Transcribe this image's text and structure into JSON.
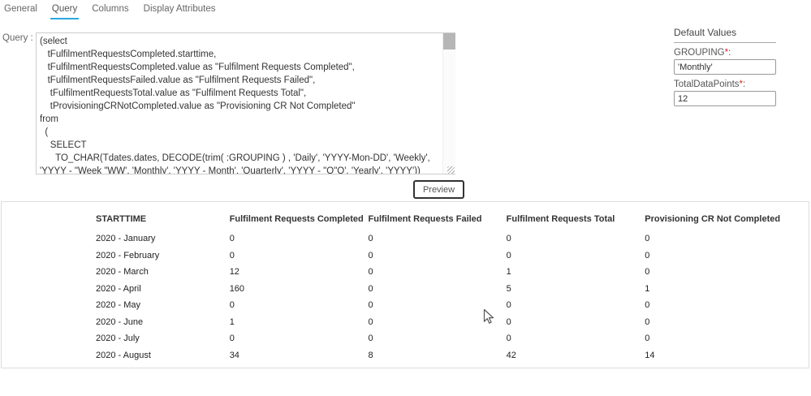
{
  "colors": {
    "accent": "#2aa9e0",
    "required": "#e02020"
  },
  "tabs": {
    "items": [
      {
        "label": "General",
        "active": false
      },
      {
        "label": "Query",
        "active": true
      },
      {
        "label": "Columns",
        "active": false
      },
      {
        "label": "Display Attributes",
        "active": false
      }
    ]
  },
  "query_panel": {
    "label": "Query :",
    "sql": "(select\n   tFulfilmentRequestsCompleted.starttime,\n   tFulfilmentRequestsCompleted.value as \"Fulfilment Requests Completed\",\n   tFulfilmentRequestsFailed.value as \"Fulfilment Requests Failed\",\n    tFulfilmentRequestsTotal.value as \"Fulfilment Requests Total\",\n    tProvisioningCRNotCompleted.value as \"Provisioning CR Not Completed\"\nfrom\n  (\n    SELECT\n      TO_CHAR(Tdates.dates, DECODE(trim( :GROUPING ) , 'Daily', 'YYYY-Mon-DD', 'Weekly', 'YYYY - \"Week \"WW', 'Monthly', 'YYYY - Month', 'Quarterly', 'YYYY - \"Q\"Q', 'Yearly', 'YYYY')) StartTime,"
  },
  "defaults_panel": {
    "title": "Default Values",
    "fields": [
      {
        "name": "GROUPING",
        "required_marker": "*",
        "colon": ":",
        "value": "'Monthly'"
      },
      {
        "name": "TotalDataPoints",
        "required_marker": "*",
        "colon": ":",
        "value": "12"
      }
    ]
  },
  "actions": {
    "preview_label": "Preview"
  },
  "results_table": {
    "headers": [
      "STARTTIME",
      "Fulfilment Requests Completed",
      "Fulfilment Requests Failed",
      "Fulfilment Requests Total",
      "Provisioning CR Not Completed"
    ],
    "rows": [
      [
        "2020 - January",
        "0",
        "0",
        "0",
        "0"
      ],
      [
        "2020 - February",
        "0",
        "0",
        "0",
        "0"
      ],
      [
        "2020 - March",
        "12",
        "0",
        "1",
        "0"
      ],
      [
        "2020 - April",
        "160",
        "0",
        "5",
        "1"
      ],
      [
        "2020 - May",
        "0",
        "0",
        "0",
        "0"
      ],
      [
        "2020 - June",
        "1",
        "0",
        "0",
        "0"
      ],
      [
        "2020 - July",
        "0",
        "0",
        "0",
        "0"
      ],
      [
        "2020 - August",
        "34",
        "8",
        "42",
        "14"
      ]
    ]
  }
}
